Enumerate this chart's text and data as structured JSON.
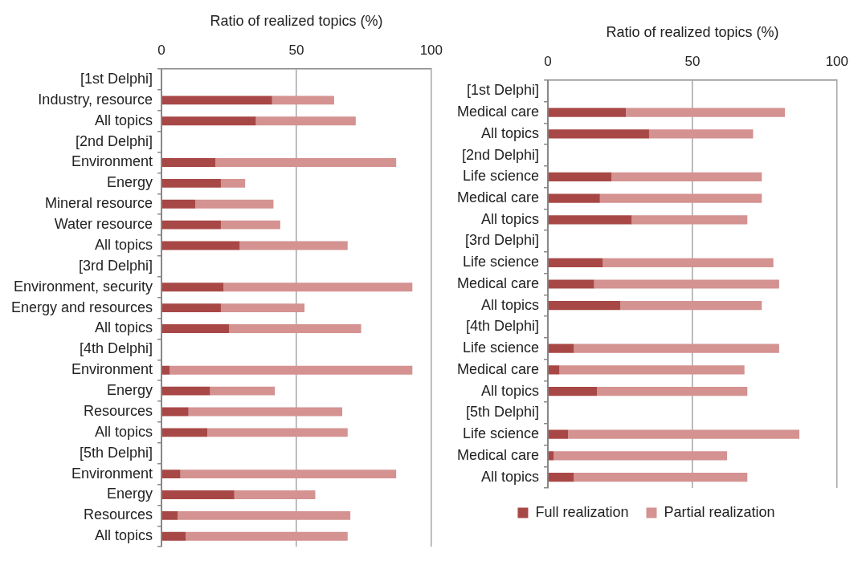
{
  "chart_data": [
    {
      "type": "bar",
      "orientation": "horizontal",
      "stacked": true,
      "xlabel": "Ratio of realized topics (%)",
      "xlim": [
        0,
        100
      ],
      "xticks": [
        0,
        50,
        100
      ],
      "grid": "x",
      "legend": false,
      "categories": [
        "[1st Delphi]",
        "Industry, resource",
        "All topics",
        "[2nd Delphi]",
        "Environment",
        "Energy",
        "Mineral resource",
        "Water resource",
        "All topics",
        "[3rd Delphi]",
        "Environment, security",
        "Energy and resources",
        "All topics",
        "[4th Delphi]",
        "Environment",
        "Energy",
        "Resources",
        "All topics",
        "[5th Delphi]",
        "Environment",
        "Energy",
        "Resources",
        "All topics"
      ],
      "series": [
        {
          "color": "#a84846",
          "values": [
            null,
            41,
            35,
            null,
            20,
            22,
            12.5,
            22,
            29,
            null,
            23,
            22,
            25,
            null,
            3,
            18,
            10,
            17,
            null,
            7,
            27,
            6,
            9
          ]
        },
        {
          "color": "#d49291",
          "values": [
            null,
            23,
            37,
            null,
            67,
            9,
            29,
            22,
            40,
            null,
            70,
            31,
            49,
            null,
            90,
            24,
            57,
            52,
            null,
            80,
            30,
            64,
            60
          ]
        }
      ]
    },
    {
      "type": "bar",
      "orientation": "horizontal",
      "stacked": true,
      "xlabel": "Ratio of realized topics (%)",
      "xlim": [
        0,
        100
      ],
      "xticks": [
        0,
        50,
        100
      ],
      "grid": "x",
      "legend": "bottom",
      "categories": [
        "[1st Delphi]",
        "Medical care",
        "All topics",
        "[2nd Delphi]",
        "Life science",
        "Medical care",
        "All topics",
        "[3rd Delphi]",
        "Life science",
        "Medical care",
        "All topics",
        "[4th Delphi]",
        "Life science",
        "Medical care",
        "All topics",
        "[5th Delphi]",
        "Life science",
        "Medical care",
        "All topics"
      ],
      "series": [
        {
          "name": "Full realization",
          "color": "#a84846",
          "values": [
            null,
            27,
            35,
            null,
            22,
            18,
            29,
            null,
            19,
            16,
            25,
            null,
            9,
            4,
            17,
            null,
            7,
            2,
            9
          ]
        },
        {
          "name": "Partial realization",
          "color": "#d49291",
          "values": [
            null,
            55,
            36,
            null,
            52,
            56,
            40,
            null,
            59,
            64,
            49,
            null,
            71,
            64,
            52,
            null,
            80,
            60,
            60
          ]
        }
      ]
    }
  ]
}
